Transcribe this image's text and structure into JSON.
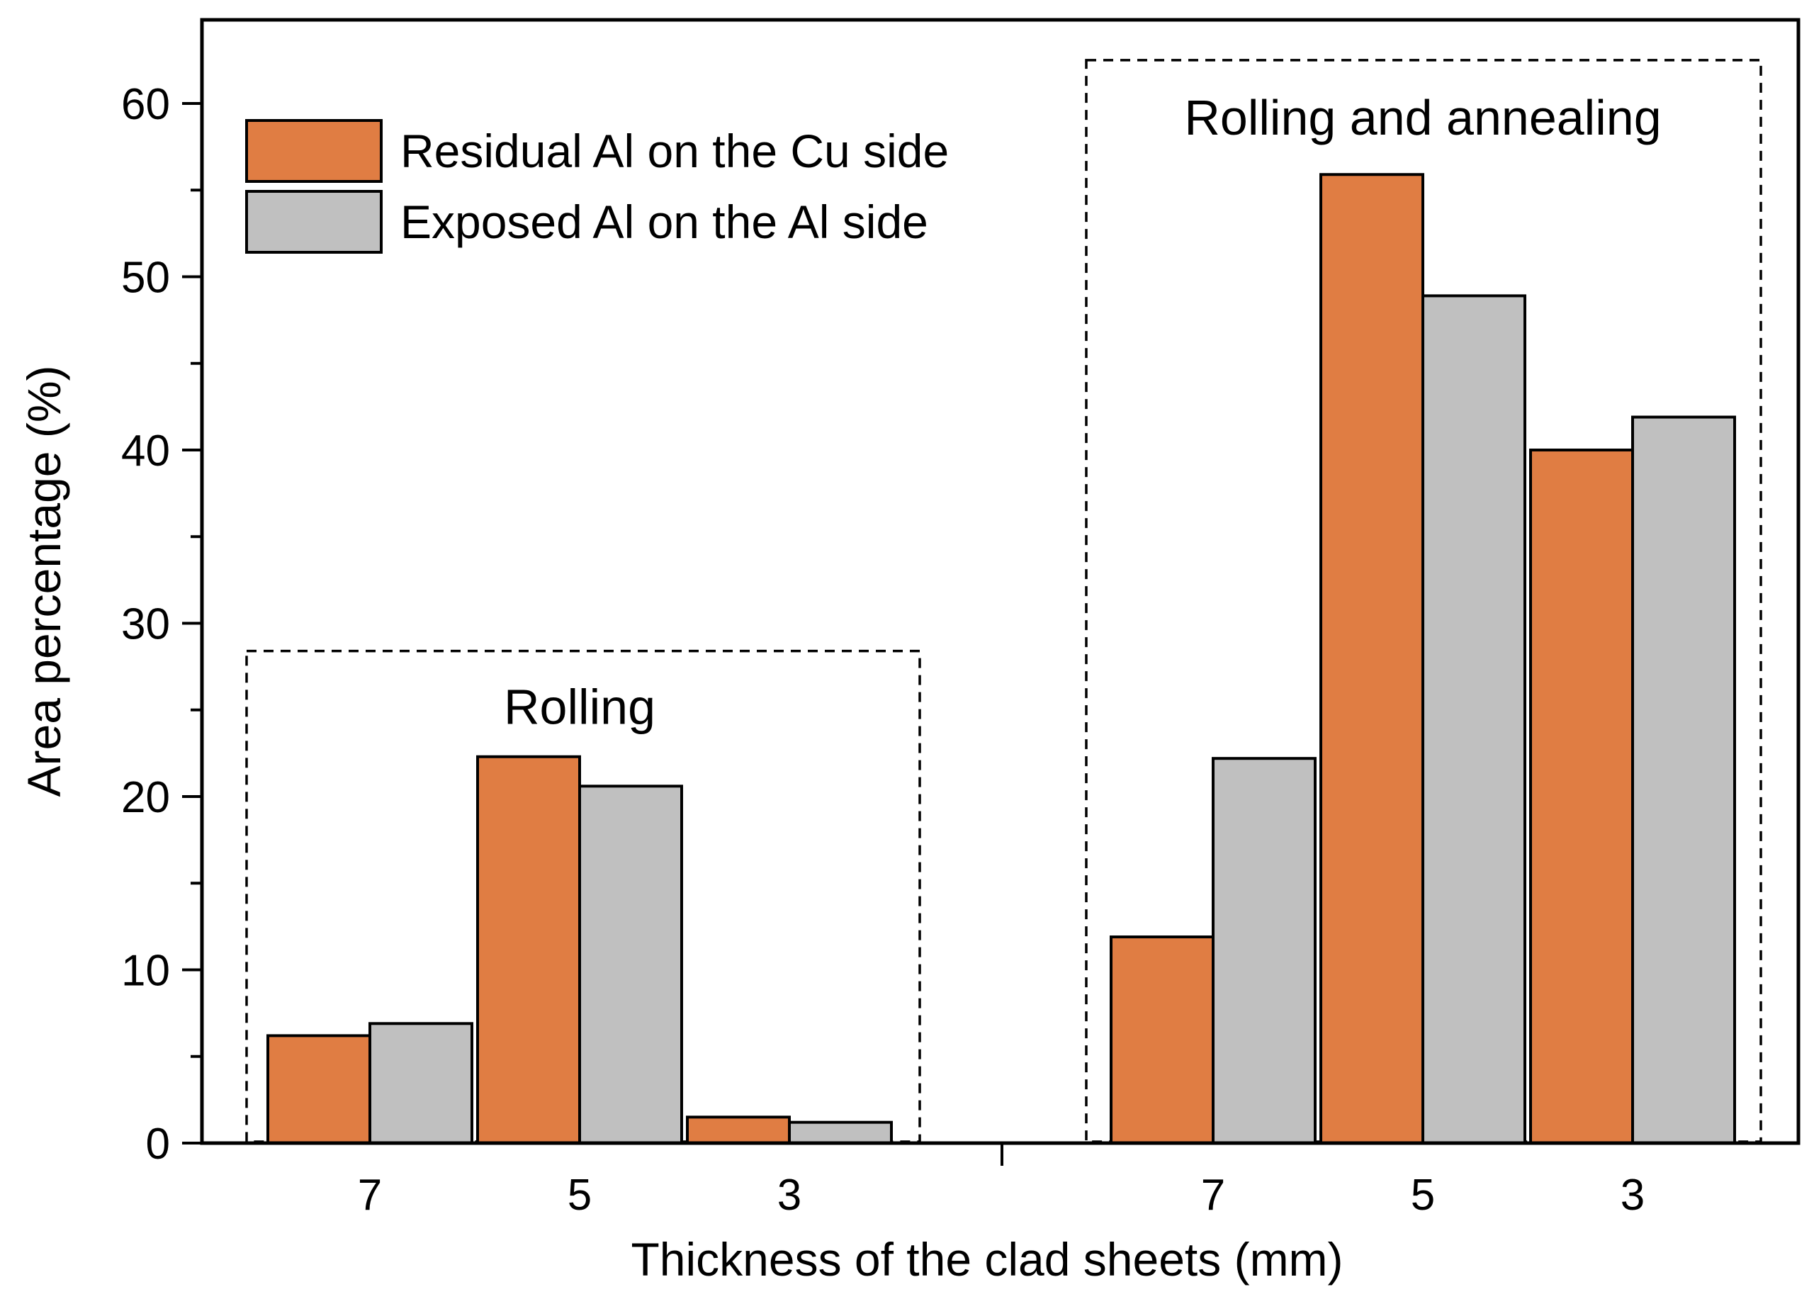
{
  "chart_data": {
    "type": "bar",
    "xlabel": "Thickness of the clad sheets (mm)",
    "ylabel": "Area percentage (%)",
    "ylim": [
      0,
      65
    ],
    "yticks": [
      0,
      10,
      20,
      30,
      40,
      50,
      60
    ],
    "colors": {
      "Residual Al on the Cu side": "#e07d43",
      "Exposed Al on the Al side": "#c0c0c0"
    },
    "groups": [
      {
        "label": "Rolling",
        "categories": [
          "7",
          "5",
          "3"
        ],
        "series": [
          {
            "name": "Residual Al on the Cu side",
            "values": [
              6.2,
              22.3,
              1.5
            ]
          },
          {
            "name": "Exposed Al on the Al side",
            "values": [
              6.9,
              20.6,
              1.2
            ]
          }
        ]
      },
      {
        "label": "Rolling and annealing",
        "categories": [
          "7",
          "5",
          "3"
        ],
        "series": [
          {
            "name": "Residual Al on the Cu side",
            "values": [
              11.9,
              55.9,
              40.0
            ]
          },
          {
            "name": "Exposed Al on the Al side",
            "values": [
              22.2,
              48.9,
              41.9
            ]
          }
        ]
      }
    ],
    "legend": {
      "position": "top-left",
      "entries": [
        "Residual Al on the Cu side",
        "Exposed Al on the Al side"
      ]
    }
  }
}
